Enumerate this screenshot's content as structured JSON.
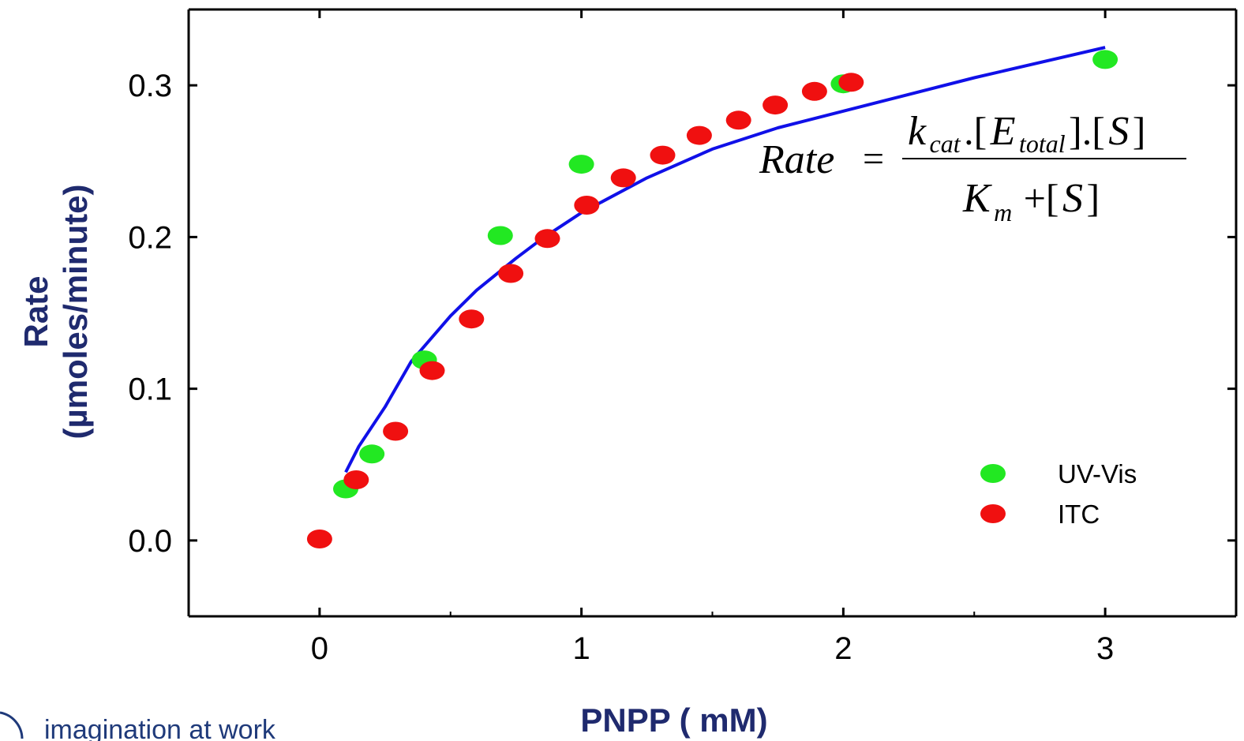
{
  "chart_data": {
    "type": "scatter",
    "xlabel": "PNPP ( mM)",
    "ylabel_line1": "Rate",
    "ylabel_line2": "(µmoles/minute)",
    "xlim": [
      -0.5,
      3.5
    ],
    "ylim": [
      -0.05,
      0.35
    ],
    "x_ticks": [
      0,
      1,
      2,
      3
    ],
    "x_tick_labels": [
      "0",
      "1",
      "2",
      "3"
    ],
    "y_ticks": [
      0.0,
      0.1,
      0.2,
      0.3
    ],
    "y_tick_labels": [
      "0.0",
      "0.1",
      "0.2",
      "0.3"
    ],
    "legend_position": "bottom-right",
    "series": [
      {
        "name": "UV-Vis",
        "kind": "scatter",
        "color": "#22e822",
        "x": [
          0.1,
          0.2,
          0.4,
          0.69,
          1.0,
          2.0,
          3.0
        ],
        "y": [
          0.034,
          0.057,
          0.119,
          0.201,
          0.248,
          0.301,
          0.317
        ]
      },
      {
        "name": "ITC",
        "kind": "scatter",
        "color": "#f01010",
        "x": [
          0.0,
          0.14,
          0.29,
          0.43,
          0.58,
          0.73,
          0.87,
          1.02,
          1.16,
          1.31,
          1.45,
          1.6,
          1.74,
          1.89,
          2.03
        ],
        "y": [
          0.001,
          0.04,
          0.072,
          0.112,
          0.146,
          0.176,
          0.199,
          0.221,
          0.239,
          0.254,
          0.267,
          0.277,
          0.287,
          0.296,
          0.302
        ]
      },
      {
        "name": "",
        "kind": "line",
        "color": "#1010e8",
        "x": [
          0.1,
          0.15,
          0.25,
          0.35,
          0.5,
          0.6,
          0.75,
          0.85,
          1.0,
          1.25,
          1.5,
          1.75,
          2.0,
          2.5,
          3.0
        ],
        "y": [
          0.045,
          0.062,
          0.088,
          0.118,
          0.148,
          0.165,
          0.186,
          0.199,
          0.216,
          0.239,
          0.258,
          0.272,
          0.283,
          0.305,
          0.325
        ]
      }
    ],
    "equation": {
      "lhs": "Rate",
      "equals": "=",
      "k": "k",
      "k_sub": "cat",
      "dot1": ".[",
      "E": "E",
      "E_sub": "total",
      "close_dot": "].[",
      "S": "S",
      "close": "]",
      "K": "K",
      "K_sub": "m",
      "plus": "+[",
      "S2": "S",
      "close2": "]"
    }
  },
  "logo": {
    "text": "imagination at work"
  }
}
